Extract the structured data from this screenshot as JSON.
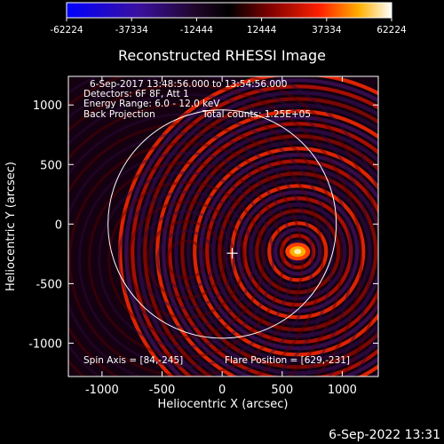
{
  "chart_data": {
    "type": "heatmap",
    "title": "Reconstructed RHESSI Image",
    "xlabel": "Heliocentric X (arcsec)",
    "ylabel": "Heliocentric Y (arcsec)",
    "xlim": [
      -1280,
      1300
    ],
    "ylim": [
      -1280,
      1240
    ],
    "x_ticks": [
      -1000,
      -500,
      0,
      500,
      1000
    ],
    "x_tick_labels": [
      "-1000",
      "-500",
      "0",
      "500",
      "1000"
    ],
    "y_ticks": [
      -1000,
      -500,
      0,
      500,
      1000
    ],
    "y_tick_labels": [
      "-1000",
      "-500",
      "0",
      "500",
      "1000"
    ],
    "colorbar": {
      "min": -62224,
      "max": 62224,
      "ticks": [
        -62224,
        -37334,
        -12444,
        12444,
        37334,
        62224
      ],
      "tick_labels": [
        "-62224",
        "-37334",
        "-12444",
        "12444",
        "37334",
        "62224"
      ]
    },
    "annotations": [
      "6-Sep-2017 13:48:56.000 to 13:54:56.000",
      "Detectors: 6F 8F, Att 1",
      "Energy Range: 6.0 - 12.0 keV",
      "Back Projection",
      "Total counts: 1.25E+05",
      "Spin Axis = [84,-245]",
      "Flare Position = [629,-231]"
    ],
    "solar_disk": {
      "center": [
        0,
        0
      ],
      "radius_arcsec": 950
    },
    "spin_axis": [
      84,
      -245
    ],
    "flare_position": [
      629,
      -231
    ]
  },
  "footer": {
    "timestamp": "6-Sep-2022 13:31"
  }
}
